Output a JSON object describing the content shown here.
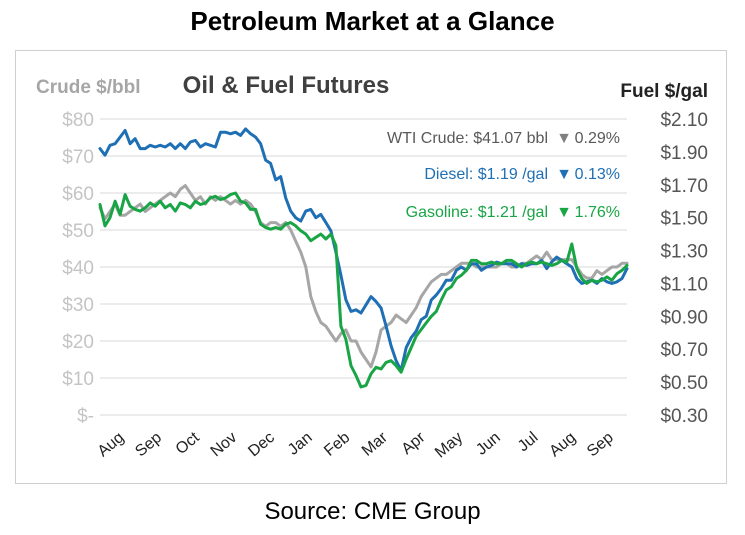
{
  "header": {
    "title": "Petroleum Market at a Glance"
  },
  "footer": {
    "source": "Source: CME Group"
  },
  "colors": {
    "crude": "#a6a6a6",
    "diesel": "#1f6fb5",
    "gasoline": "#19a545",
    "grid": "#d9d9d9"
  },
  "chart_data": {
    "type": "line",
    "title": "Oil & Fuel Futures",
    "y_left_label": "Crude $/bbl",
    "y_right_label": "Fuel $/gal",
    "y_left_range": [
      0,
      80
    ],
    "y_right_range": [
      0.3,
      2.1
    ],
    "y_left_ticks": [
      "$-",
      "$10",
      "$20",
      "$30",
      "$40",
      "$50",
      "$60",
      "$70",
      "$80"
    ],
    "y_right_ticks": [
      "$0.30",
      "$0.50",
      "$0.70",
      "$0.90",
      "$1.10",
      "$1.30",
      "$1.50",
      "$1.70",
      "$1.90",
      "$2.10"
    ],
    "x_ticks": [
      "Aug",
      "Sep",
      "Oct",
      "Nov",
      "Dec",
      "Jan",
      "Feb",
      "Mar",
      "Apr",
      "May",
      "Jun",
      "Jul",
      "Aug",
      "Sep"
    ],
    "grid": true,
    "legend": [
      {
        "series": "WTI Crude",
        "text": "WTI Crude: $41.07 bbl",
        "arrow": "▼",
        "change": "0.29%"
      },
      {
        "series": "Diesel",
        "text": "Diesel:  $1.19 /gal",
        "arrow": "▼",
        "change": "0.13%"
      },
      {
        "series": "Gasoline",
        "text": "Gasoline:  $1.21 /gal",
        "arrow": "▼",
        "change": "1.76%"
      }
    ],
    "series": [
      {
        "name": "WTI Crude",
        "axis": "left",
        "values": [
          56,
          53,
          55,
          57,
          54,
          54,
          55,
          56,
          57,
          55,
          56,
          57,
          58,
          59,
          60,
          59,
          61,
          62,
          60,
          58,
          59,
          57,
          59,
          58,
          59,
          58,
          57,
          58,
          57,
          58,
          57,
          55,
          52,
          51,
          52,
          52,
          51,
          52,
          50,
          47,
          44,
          40,
          32,
          28,
          25,
          24,
          22,
          20,
          22,
          23,
          20,
          20,
          17,
          15,
          13,
          17,
          23,
          24,
          25,
          27,
          26,
          25,
          27,
          29,
          32,
          34,
          36,
          37,
          38,
          38,
          39,
          40,
          41,
          41,
          41,
          40,
          40,
          40,
          40,
          40,
          41,
          41,
          40,
          40,
          41,
          41,
          42,
          43,
          42,
          44,
          42,
          42,
          42,
          42,
          42,
          40,
          38,
          37,
          37,
          39,
          38,
          39,
          40,
          40,
          41,
          41
        ]
      },
      {
        "name": "Diesel",
        "axis": "right",
        "values": [
          1.92,
          1.88,
          1.94,
          1.95,
          1.99,
          2.03,
          1.95,
          1.98,
          1.92,
          1.92,
          1.94,
          1.93,
          1.94,
          1.93,
          1.95,
          1.92,
          1.95,
          1.92,
          1.96,
          1.97,
          1.93,
          1.95,
          1.94,
          1.93,
          2.02,
          2.02,
          2.01,
          2.02,
          2.0,
          2.04,
          2.01,
          1.99,
          1.95,
          1.85,
          1.83,
          1.73,
          1.75,
          1.62,
          1.54,
          1.5,
          1.48,
          1.54,
          1.55,
          1.5,
          1.52,
          1.47,
          1.42,
          1.29,
          1.15,
          1.0,
          0.93,
          0.94,
          0.92,
          0.97,
          1.02,
          0.99,
          0.95,
          0.84,
          0.72,
          0.63,
          0.57,
          0.71,
          0.77,
          0.81,
          0.88,
          0.9,
          1.0,
          1.03,
          1.07,
          1.12,
          1.12,
          1.18,
          1.2,
          1.18,
          1.22,
          1.22,
          1.18,
          1.2,
          1.21,
          1.23,
          1.22,
          1.22,
          1.22,
          1.2,
          1.22,
          1.21,
          1.22,
          1.22,
          1.24,
          1.19,
          1.23,
          1.26,
          1.24,
          1.22,
          1.2,
          1.13,
          1.1,
          1.11,
          1.12,
          1.1,
          1.13,
          1.11,
          1.1,
          1.11,
          1.13,
          1.19
        ]
      },
      {
        "name": "Gasoline",
        "axis": "right",
        "values": [
          1.58,
          1.45,
          1.5,
          1.6,
          1.52,
          1.64,
          1.57,
          1.55,
          1.54,
          1.56,
          1.59,
          1.57,
          1.6,
          1.56,
          1.58,
          1.54,
          1.59,
          1.58,
          1.56,
          1.6,
          1.58,
          1.59,
          1.62,
          1.63,
          1.61,
          1.62,
          1.64,
          1.65,
          1.6,
          1.59,
          1.55,
          1.55,
          1.46,
          1.44,
          1.43,
          1.44,
          1.43,
          1.46,
          1.47,
          1.45,
          1.42,
          1.4,
          1.36,
          1.38,
          1.4,
          1.37,
          1.4,
          1.33,
          0.84,
          0.76,
          0.6,
          0.54,
          0.47,
          0.48,
          0.55,
          0.59,
          0.58,
          0.62,
          0.63,
          0.6,
          0.56,
          0.64,
          0.71,
          0.78,
          0.82,
          0.86,
          0.9,
          0.93,
          1.0,
          1.06,
          1.08,
          1.13,
          1.15,
          1.18,
          1.24,
          1.24,
          1.22,
          1.22,
          1.23,
          1.22,
          1.22,
          1.24,
          1.24,
          1.22,
          1.2,
          1.22,
          1.23,
          1.22,
          1.23,
          1.22,
          1.21,
          1.22,
          1.24,
          1.23,
          1.34,
          1.19,
          1.13,
          1.1,
          1.12,
          1.11,
          1.12,
          1.14,
          1.12,
          1.16,
          1.18,
          1.21
        ]
      }
    ]
  }
}
